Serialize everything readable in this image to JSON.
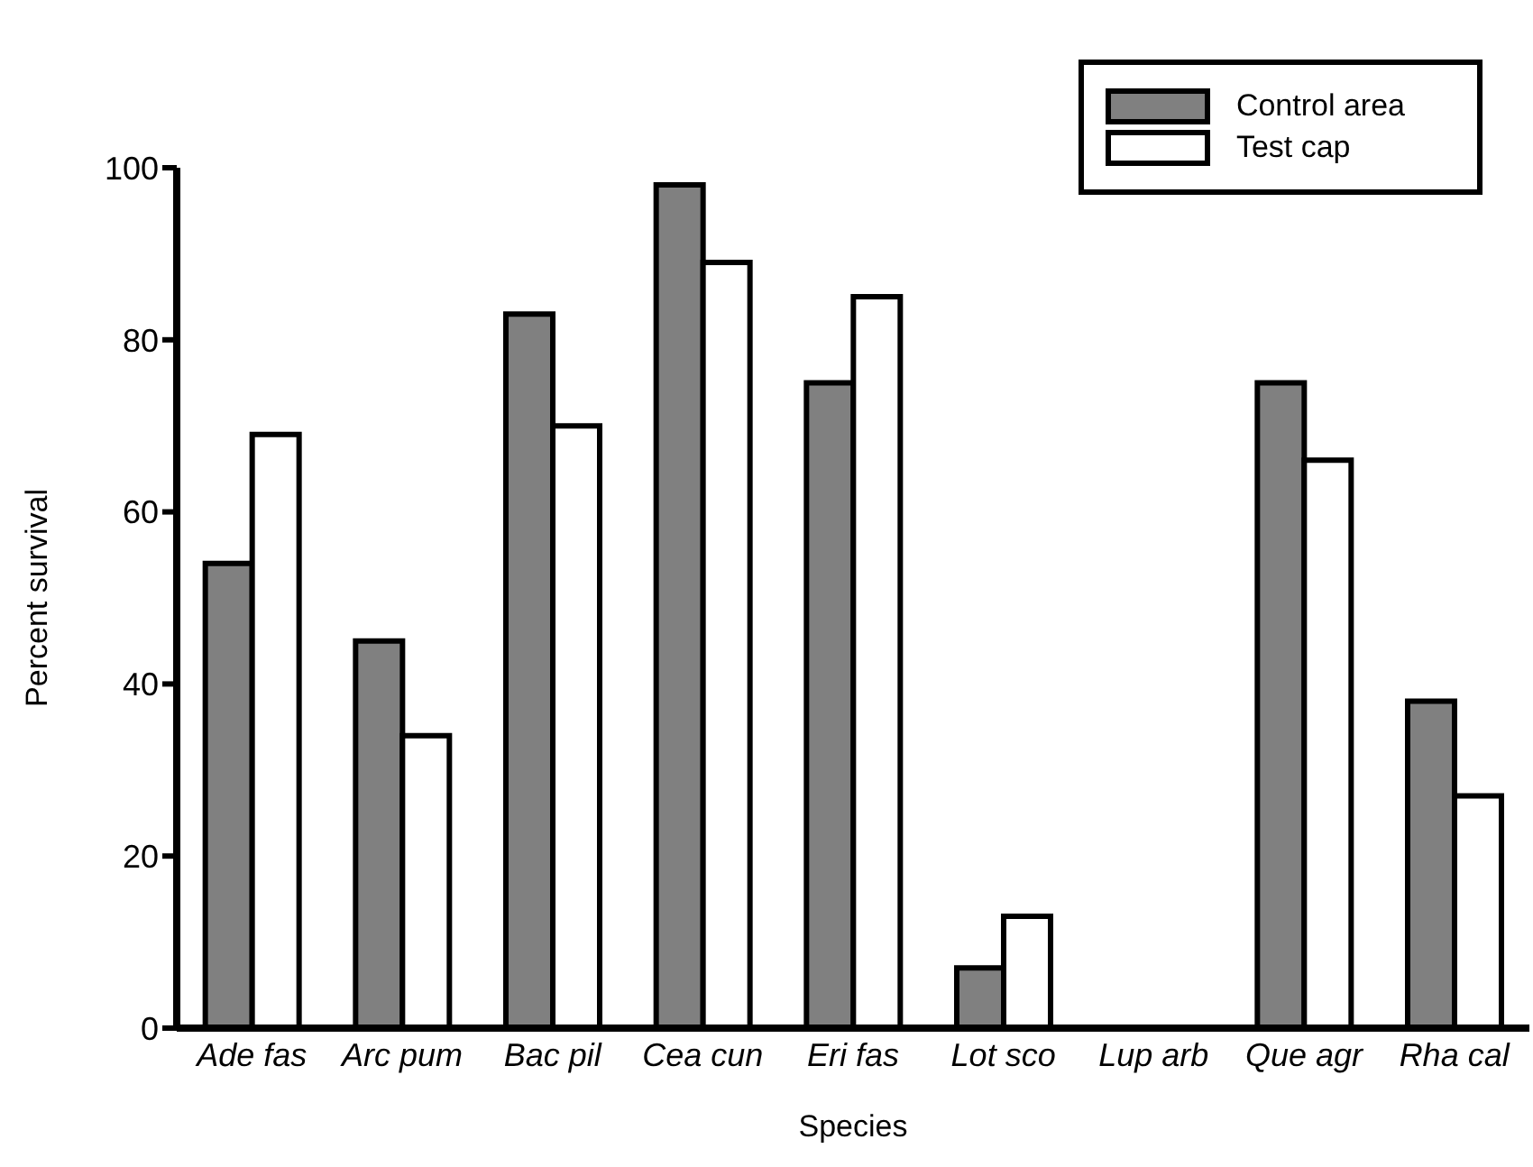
{
  "chart_data": {
    "type": "bar",
    "xlabel": "Species",
    "ylabel": "Percent survival",
    "categories": [
      "Ade fas",
      "Arc pum",
      "Bac pil",
      "Cea cun",
      "Eri fas",
      "Lot sco",
      "Lup  arb",
      "Que agr",
      "Rha cal"
    ],
    "series": [
      {
        "name": "Control area",
        "color": "#808080",
        "values": [
          54,
          45,
          83,
          98,
          75,
          7,
          0,
          75,
          38
        ]
      },
      {
        "name": "Test cap",
        "color": "#ffffff",
        "values": [
          69,
          34,
          70,
          89,
          85,
          13,
          0,
          66,
          27
        ]
      }
    ],
    "ylim": [
      0,
      100
    ],
    "yticks": [
      0,
      20,
      40,
      60,
      80,
      100
    ],
    "grid": false,
    "legend": "top right"
  }
}
